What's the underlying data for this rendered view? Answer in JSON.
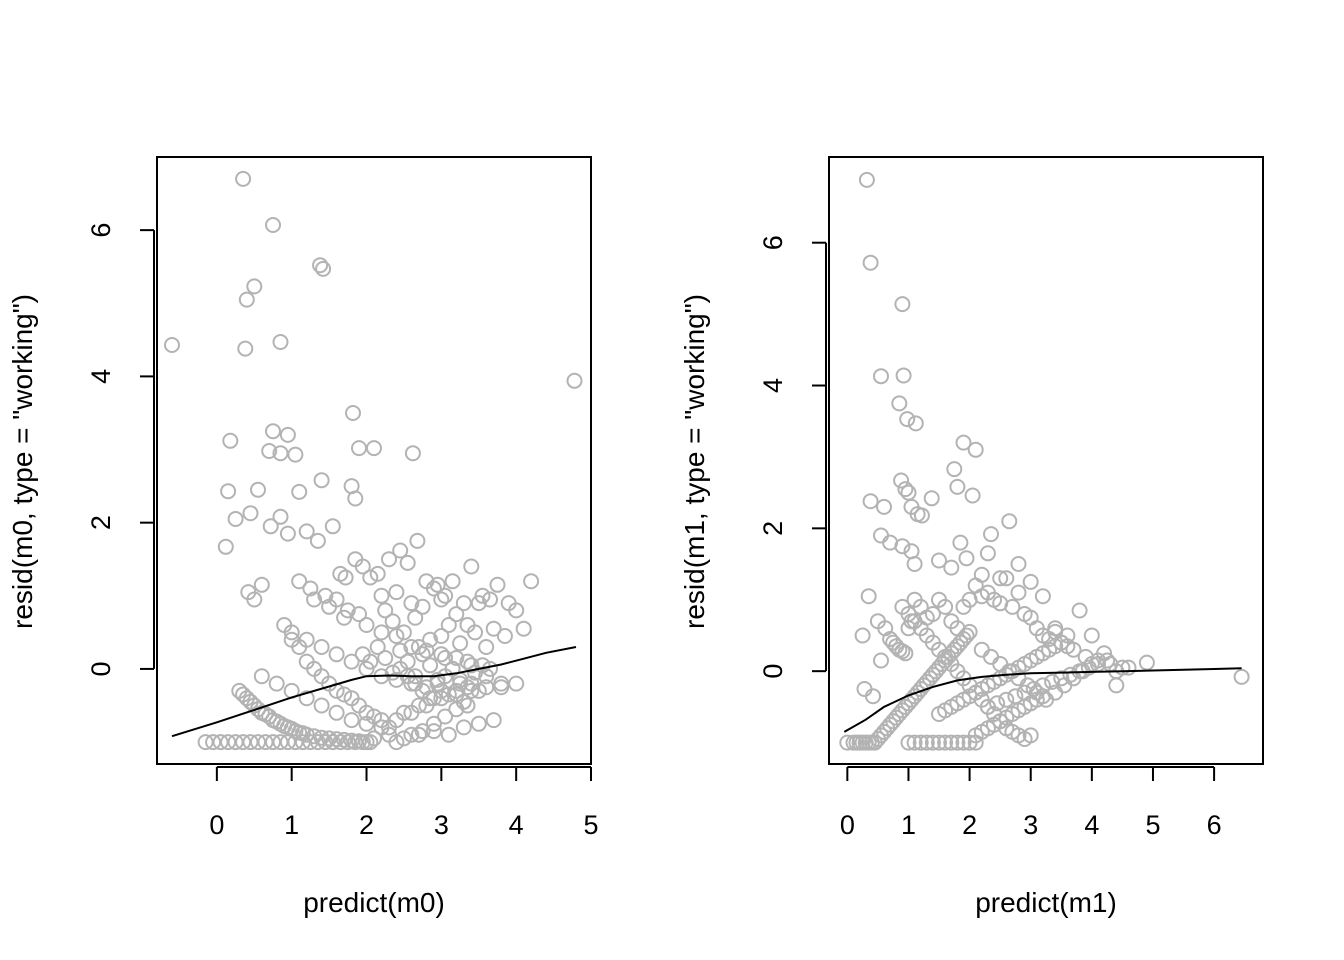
{
  "figure": {
    "background": "#ffffff",
    "point_color": "#b3b3b3",
    "line_color": "#000000"
  },
  "chart_data": [
    {
      "type": "scatter",
      "xlabel": "predict(m0)",
      "ylabel": "resid(m0, type = \"working\")",
      "xlim": [
        -0.8,
        5.0
      ],
      "ylim": [
        -1.3,
        7.0
      ],
      "x_ticks": [
        0,
        1,
        2,
        3,
        4,
        5
      ],
      "x_tick_labels": [
        "0",
        "1",
        "2",
        "3",
        "4",
        "5"
      ],
      "y_ticks": [
        0,
        2,
        4,
        6
      ],
      "y_tick_labels": [
        "0",
        "2",
        "4",
        "6"
      ],
      "grid": false,
      "series": [
        {
          "kind": "points",
          "x": [
            -0.6,
            0.35,
            0.75,
            0.5,
            0.4,
            1.38,
            1.42,
            0.38,
            0.85,
            4.78,
            1.82,
            0.75,
            0.95,
            0.7,
            0.85,
            1.05,
            0.18,
            1.9,
            2.1,
            2.62,
            1.4,
            0.12,
            0.45,
            0.55,
            1.8,
            1.85,
            1.1,
            0.15,
            0.25,
            0.42,
            0.5,
            0.6,
            0.72,
            0.85,
            0.95,
            1.2,
            1.35,
            1.55,
            1.65,
            1.72,
            1.85,
            1.95,
            2.05,
            2.15,
            2.3,
            2.45,
            2.55,
            2.68,
            2.8,
            2.95,
            3.05,
            3.15,
            3.3,
            3.4,
            3.55,
            3.65,
            3.75,
            3.9,
            4.0,
            4.1,
            4.2,
            1.25,
            1.45,
            1.6,
            1.75,
            1.9,
            2.2,
            2.4,
            2.6,
            2.75,
            2.9,
            3.0,
            3.2,
            3.35,
            3.5,
            3.7,
            3.85,
            2.35,
            2.5,
            2.65,
            2.85,
            3.1,
            3.25,
            3.45,
            2.25,
            2.7,
            3.0,
            3.6,
            1.1,
            1.3,
            1.5,
            1.7,
            2.0,
            2.2,
            2.4,
            2.6,
            2.8,
            3.0,
            3.2,
            3.4,
            0.3,
            0.35,
            0.4,
            0.45,
            0.5,
            0.55,
            0.6,
            0.65,
            0.7,
            0.75,
            0.8,
            0.85,
            0.9,
            0.95,
            1.0,
            1.05,
            1.1,
            1.15,
            1.2,
            1.3,
            1.4,
            1.5,
            1.6,
            1.7,
            1.8,
            1.9,
            2.0,
            2.1,
            2.3,
            2.5,
            2.7,
            2.9,
            3.1,
            3.3,
            3.5,
            3.7,
            -0.15,
            -0.05,
            0.05,
            0.15,
            0.25,
            0.35,
            0.45,
            0.55,
            0.65,
            0.75,
            0.85,
            0.95,
            1.05,
            1.15,
            1.25,
            1.35,
            1.45,
            1.55,
            1.65,
            1.75,
            1.85,
            1.95,
            2.05,
            2.4,
            2.6,
            2.75,
            2.9,
            3.05,
            3.2,
            3.35,
            2.45,
            2.55,
            2.65,
            2.75,
            2.85,
            2.95,
            3.05,
            3.15,
            3.25,
            3.35,
            2.5,
            2.7,
            2.9,
            3.1,
            3.3,
            3.5,
            0.9,
            1.0,
            1.1,
            1.2,
            1.3,
            1.4,
            1.5,
            1.6,
            1.7,
            1.8,
            1.9,
            2.0,
            2.1,
            2.2,
            2.3,
            0.6,
            0.8,
            1.0,
            1.2,
            1.4,
            1.6,
            1.8,
            2.0,
            2.2,
            2.4,
            2.6,
            2.8,
            3.0,
            3.2,
            3.4,
            3.6,
            3.8,
            4.0,
            1.0,
            1.2,
            1.4,
            1.6,
            1.8,
            2.0,
            2.2,
            2.4,
            2.6,
            2.8,
            3.0,
            3.2,
            3.4,
            3.6,
            3.8,
            1.95,
            2.05,
            2.15,
            2.25,
            2.35,
            2.45,
            2.55,
            2.65,
            2.75,
            2.85,
            2.95,
            3.05,
            3.15,
            3.25,
            3.35,
            3.45,
            3.55,
            3.65
          ],
          "y": [
            4.43,
            6.7,
            6.07,
            5.23,
            5.05,
            5.52,
            5.47,
            4.38,
            4.47,
            3.94,
            3.5,
            3.25,
            3.2,
            2.98,
            2.95,
            2.93,
            3.12,
            3.02,
            3.02,
            2.95,
            2.58,
            1.67,
            2.13,
            2.45,
            2.5,
            2.33,
            2.42,
            2.43,
            2.05,
            1.05,
            0.95,
            1.15,
            1.95,
            2.08,
            1.85,
            1.88,
            1.75,
            1.95,
            1.3,
            1.25,
            1.5,
            1.4,
            1.25,
            1.3,
            1.5,
            1.62,
            1.45,
            1.75,
            1.2,
            1.15,
            1.0,
            1.2,
            0.9,
            1.4,
            1.0,
            0.95,
            1.15,
            0.9,
            0.8,
            0.55,
            1.2,
            1.1,
            1.0,
            0.95,
            0.8,
            0.75,
            1.0,
            1.05,
            0.9,
            0.85,
            1.1,
            0.95,
            0.75,
            0.6,
            0.9,
            0.55,
            0.45,
            0.65,
            0.5,
            0.7,
            0.4,
            0.6,
            0.35,
            0.5,
            0.8,
            0.3,
            0.45,
            0.3,
            1.2,
            0.95,
            0.85,
            0.7,
            0.6,
            0.5,
            0.45,
            0.3,
            0.25,
            0.2,
            0.15,
            0.05,
            -0.3,
            -0.35,
            -0.4,
            -0.45,
            -0.5,
            -0.55,
            -0.6,
            -0.62,
            -0.65,
            -0.7,
            -0.72,
            -0.75,
            -0.78,
            -0.8,
            -0.82,
            -0.85,
            -0.87,
            -0.88,
            -0.9,
            -0.92,
            -0.94,
            -0.95,
            -0.96,
            -0.97,
            -0.98,
            -0.99,
            -1.0,
            -0.95,
            -0.9,
            -0.95,
            -0.9,
            -0.85,
            -0.9,
            -0.8,
            -0.75,
            -0.7,
            -1.0,
            -1.0,
            -1.0,
            -1.0,
            -1.0,
            -1.0,
            -1.0,
            -1.0,
            -1.0,
            -1.0,
            -1.0,
            -1.0,
            -1.0,
            -1.0,
            -1.0,
            -1.0,
            -1.0,
            -1.0,
            -1.0,
            -1.0,
            -1.0,
            -1.0,
            -1.0,
            -1.0,
            -0.9,
            -0.85,
            -0.75,
            -0.65,
            -0.55,
            -0.5,
            0.0,
            -0.1,
            -0.2,
            -0.3,
            -0.4,
            -0.2,
            -0.1,
            0.0,
            -0.15,
            -0.25,
            -0.6,
            -0.5,
            -0.4,
            -0.35,
            -0.45,
            -0.3,
            0.6,
            0.4,
            0.3,
            0.1,
            0.0,
            -0.1,
            -0.2,
            -0.3,
            -0.35,
            -0.4,
            -0.5,
            -0.6,
            -0.65,
            -0.7,
            -0.8,
            -0.1,
            -0.2,
            -0.3,
            -0.4,
            -0.5,
            -0.6,
            -0.7,
            -0.75,
            -0.8,
            -0.7,
            -0.6,
            -0.5,
            -0.4,
            -0.3,
            -0.2,
            -0.1,
            -0.25,
            -0.2,
            0.5,
            0.4,
            0.3,
            0.2,
            0.1,
            0.0,
            -0.1,
            -0.15,
            -0.2,
            -0.25,
            -0.3,
            -0.35,
            -0.3,
            -0.25,
            -0.2,
            0.2,
            0.1,
            0.3,
            0.15,
            -0.05,
            0.25,
            0.1,
            -0.1,
            0.2,
            0.05,
            -0.15,
            0.15,
            0.0,
            -0.2,
            0.1,
            -0.05,
            0.05,
            0.0
          ]
        },
        {
          "kind": "line",
          "x": [
            -0.6,
            0.0,
            0.5,
            1.0,
            1.5,
            1.8,
            2.0,
            2.3,
            2.6,
            2.9,
            3.2,
            3.5,
            3.8,
            4.1,
            4.4,
            4.8
          ],
          "y": [
            -0.92,
            -0.73,
            -0.56,
            -0.39,
            -0.24,
            -0.15,
            -0.1,
            -0.09,
            -0.1,
            -0.1,
            -0.06,
            0.0,
            0.06,
            0.14,
            0.22,
            0.3
          ]
        }
      ]
    },
    {
      "type": "scatter",
      "xlabel": "predict(m1)",
      "ylabel": "resid(m1, type = \"working\")",
      "xlim": [
        -0.3,
        6.8
      ],
      "ylim": [
        -1.3,
        7.2
      ],
      "x_ticks": [
        0,
        1,
        2,
        3,
        4,
        5,
        6
      ],
      "x_tick_labels": [
        "0",
        "1",
        "2",
        "3",
        "4",
        "5",
        "6"
      ],
      "y_ticks": [
        0,
        2,
        4,
        6
      ],
      "y_tick_labels": [
        "0",
        "2",
        "4",
        "6"
      ],
      "grid": false,
      "series": [
        {
          "kind": "points",
          "x": [
            0.32,
            0.38,
            0.9,
            0.55,
            0.92,
            0.85,
            0.98,
            1.12,
            1.9,
            2.1,
            1.75,
            1.8,
            2.05,
            1.38,
            0.38,
            0.6,
            0.88,
            0.95,
            1.0,
            1.05,
            1.15,
            1.22,
            0.55,
            0.7,
            0.9,
            1.05,
            1.1,
            1.85,
            2.35,
            2.65,
            1.95,
            2.3,
            1.5,
            1.7,
            2.2,
            2.5,
            2.8,
            3.0,
            3.2,
            3.4,
            3.6,
            3.8,
            4.0,
            4.2,
            4.4,
            4.6,
            4.9,
            6.45,
            0.25,
            0.28,
            0.35,
            0.42,
            0.5,
            0.55,
            0.62,
            0.7,
            0.75,
            0.8,
            0.85,
            0.9,
            0.95,
            1.0,
            1.05,
            1.1,
            1.2,
            1.3,
            1.4,
            1.5,
            1.6,
            1.7,
            1.8,
            1.9,
            2.0,
            2.1,
            2.2,
            2.3,
            2.4,
            2.5,
            2.6,
            2.7,
            2.8,
            2.9,
            3.0,
            3.1,
            3.2,
            3.3,
            3.4,
            3.5,
            3.6,
            3.7,
            3.9,
            4.1,
            4.3,
            4.5,
            0.0,
            0.1,
            0.15,
            0.2,
            0.25,
            0.3,
            0.35,
            0.4,
            0.45,
            0.5,
            0.55,
            0.6,
            0.65,
            0.7,
            0.75,
            0.8,
            0.85,
            0.9,
            0.95,
            1.0,
            1.05,
            1.1,
            1.15,
            1.2,
            1.25,
            1.3,
            1.35,
            1.4,
            1.45,
            1.5,
            1.55,
            1.6,
            1.65,
            1.7,
            1.75,
            1.8,
            1.85,
            1.9,
            1.95,
            2.0,
            2.1,
            2.2,
            2.3,
            2.4,
            2.5,
            2.6,
            2.7,
            2.8,
            2.9,
            3.0,
            3.1,
            3.2,
            1.5,
            1.6,
            1.7,
            1.8,
            1.9,
            2.0,
            2.1,
            2.2,
            2.3,
            2.4,
            2.5,
            2.6,
            2.7,
            2.8,
            2.9,
            3.0,
            3.1,
            3.2,
            3.3,
            3.4,
            3.5,
            2.2,
            2.35,
            2.5,
            2.65,
            2.8,
            2.95,
            3.1,
            3.25,
            3.4,
            3.55,
            3.7,
            3.85,
            4.0,
            2.3,
            2.45,
            2.6,
            2.75,
            2.9,
            3.05,
            3.2,
            3.35,
            3.5,
            3.65,
            3.8,
            3.95,
            4.1,
            4.25,
            4.4,
            1.0,
            1.1,
            1.2,
            1.3,
            1.4,
            1.5,
            1.6,
            1.7,
            1.8,
            1.9,
            2.0,
            2.1,
            0.9,
            1.0,
            1.1,
            1.2,
            1.3,
            1.4,
            1.5,
            1.6,
            1.7,
            1.8,
            1.9,
            2.0,
            2.1,
            2.2,
            2.3,
            2.4,
            2.5,
            2.6,
            2.7,
            2.8,
            2.9,
            3.0
          ],
          "y": [
            6.88,
            5.72,
            5.14,
            4.13,
            4.14,
            3.75,
            3.53,
            3.47,
            3.2,
            3.1,
            2.83,
            2.58,
            2.46,
            2.42,
            2.38,
            2.3,
            2.67,
            2.55,
            2.5,
            2.3,
            2.2,
            2.18,
            1.9,
            1.8,
            1.75,
            1.68,
            1.5,
            1.8,
            1.92,
            2.1,
            1.58,
            1.65,
            1.55,
            1.45,
            1.35,
            1.3,
            1.5,
            1.25,
            1.05,
            0.6,
            0.5,
            0.85,
            0.5,
            0.25,
            0.0,
            0.05,
            0.12,
            -0.08,
            0.5,
            -0.25,
            1.05,
            -0.35,
            0.7,
            0.15,
            0.6,
            0.45,
            0.4,
            0.35,
            0.3,
            0.28,
            0.25,
            0.6,
            0.7,
            1.0,
            0.9,
            0.75,
            0.8,
            1.0,
            0.9,
            0.7,
            0.6,
            0.9,
            1.0,
            1.2,
            1.05,
            1.1,
            1.0,
            0.95,
            1.3,
            0.9,
            1.1,
            0.8,
            0.75,
            0.6,
            0.5,
            0.45,
            0.55,
            0.4,
            0.35,
            0.3,
            0.2,
            0.15,
            0.1,
            0.05,
            -1.0,
            -1.0,
            -1.0,
            -1.0,
            -1.0,
            -1.0,
            -1.0,
            -1.0,
            -1.0,
            -0.95,
            -0.9,
            -0.85,
            -0.8,
            -0.75,
            -0.7,
            -0.65,
            -0.6,
            -0.55,
            -0.5,
            -0.45,
            -0.4,
            -0.35,
            -0.3,
            -0.25,
            -0.2,
            -0.15,
            -0.1,
            -0.05,
            0.0,
            0.05,
            0.1,
            0.15,
            0.2,
            0.25,
            0.3,
            0.35,
            0.4,
            0.45,
            0.5,
            0.55,
            -0.9,
            -0.85,
            -0.8,
            -0.75,
            -0.7,
            -0.65,
            -0.6,
            -0.55,
            -0.5,
            -0.45,
            -0.4,
            -0.35,
            -0.6,
            -0.55,
            -0.5,
            -0.45,
            -0.4,
            -0.35,
            -0.3,
            -0.25,
            -0.2,
            -0.15,
            -0.1,
            -0.05,
            0.0,
            0.05,
            0.1,
            0.15,
            0.2,
            0.25,
            0.3,
            0.35,
            0.4,
            0.3,
            0.2,
            0.1,
            0.0,
            -0.1,
            -0.2,
            -0.3,
            -0.4,
            -0.3,
            -0.2,
            -0.1,
            0.0,
            0.1,
            -0.5,
            -0.45,
            -0.4,
            -0.35,
            -0.3,
            -0.25,
            -0.2,
            -0.15,
            -0.1,
            -0.05,
            0.0,
            0.05,
            0.1,
            0.15,
            -0.2,
            -1.0,
            -1.0,
            -1.0,
            -1.0,
            -1.0,
            -1.0,
            -1.0,
            -1.0,
            -1.0,
            -1.0,
            -1.0,
            -1.0,
            0.9,
            0.8,
            0.7,
            0.6,
            0.5,
            0.4,
            0.3,
            0.2,
            0.1,
            0.0,
            -0.1,
            -0.2,
            -0.3,
            -0.4,
            -0.5,
            -0.6,
            -0.7,
            -0.8,
            -0.85,
            -0.9,
            -0.95,
            -0.9
          ]
        },
        {
          "kind": "line",
          "x": [
            -0.05,
            0.3,
            0.6,
            1.0,
            1.4,
            1.8,
            2.2,
            2.6,
            3.0,
            3.5,
            4.0,
            4.5,
            5.0,
            5.5,
            6.0,
            6.45
          ],
          "y": [
            -0.85,
            -0.68,
            -0.5,
            -0.34,
            -0.22,
            -0.13,
            -0.08,
            -0.05,
            -0.03,
            -0.02,
            -0.01,
            0.0,
            0.01,
            0.02,
            0.03,
            0.04
          ]
        }
      ]
    }
  ]
}
